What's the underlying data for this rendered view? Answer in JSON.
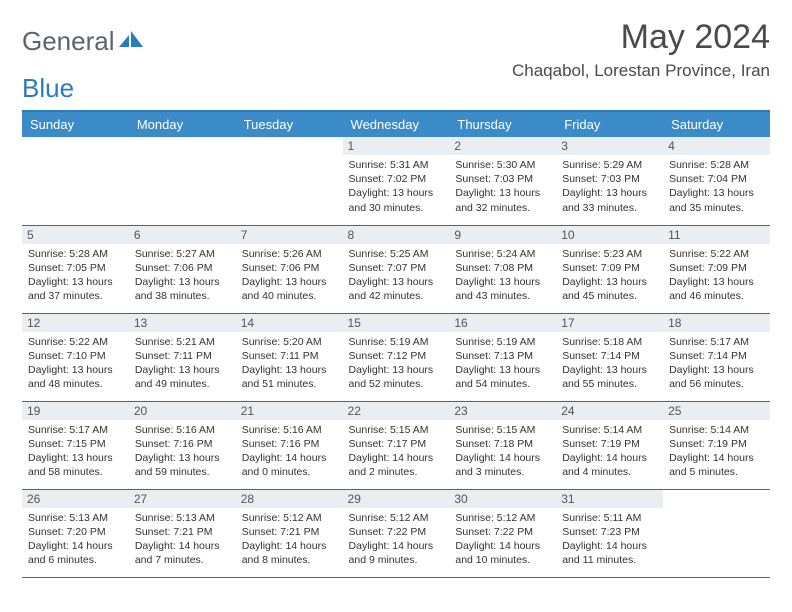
{
  "logo": {
    "part1": "General",
    "part2": "Blue"
  },
  "title": "May 2024",
  "location": "Chaqabol, Lorestan Province, Iran",
  "colors": {
    "header_bg": "#3b8bc9",
    "header_text": "#ffffff",
    "rule": "#2b7bbf",
    "day_bg": "#e9eef2",
    "row_border": "#2b6da8",
    "logo_gray": "#5a6570",
    "logo_blue": "#2b7bbf"
  },
  "weekdays": [
    "Sunday",
    "Monday",
    "Tuesday",
    "Wednesday",
    "Thursday",
    "Friday",
    "Saturday"
  ],
  "weeks": [
    [
      {
        "n": "",
        "sunrise": "",
        "sunset": "",
        "daylight": ""
      },
      {
        "n": "",
        "sunrise": "",
        "sunset": "",
        "daylight": ""
      },
      {
        "n": "",
        "sunrise": "",
        "sunset": "",
        "daylight": ""
      },
      {
        "n": "1",
        "sunrise": "Sunrise: 5:31 AM",
        "sunset": "Sunset: 7:02 PM",
        "daylight": "Daylight: 13 hours and 30 minutes."
      },
      {
        "n": "2",
        "sunrise": "Sunrise: 5:30 AM",
        "sunset": "Sunset: 7:03 PM",
        "daylight": "Daylight: 13 hours and 32 minutes."
      },
      {
        "n": "3",
        "sunrise": "Sunrise: 5:29 AM",
        "sunset": "Sunset: 7:03 PM",
        "daylight": "Daylight: 13 hours and 33 minutes."
      },
      {
        "n": "4",
        "sunrise": "Sunrise: 5:28 AM",
        "sunset": "Sunset: 7:04 PM",
        "daylight": "Daylight: 13 hours and 35 minutes."
      }
    ],
    [
      {
        "n": "5",
        "sunrise": "Sunrise: 5:28 AM",
        "sunset": "Sunset: 7:05 PM",
        "daylight": "Daylight: 13 hours and 37 minutes."
      },
      {
        "n": "6",
        "sunrise": "Sunrise: 5:27 AM",
        "sunset": "Sunset: 7:06 PM",
        "daylight": "Daylight: 13 hours and 38 minutes."
      },
      {
        "n": "7",
        "sunrise": "Sunrise: 5:26 AM",
        "sunset": "Sunset: 7:06 PM",
        "daylight": "Daylight: 13 hours and 40 minutes."
      },
      {
        "n": "8",
        "sunrise": "Sunrise: 5:25 AM",
        "sunset": "Sunset: 7:07 PM",
        "daylight": "Daylight: 13 hours and 42 minutes."
      },
      {
        "n": "9",
        "sunrise": "Sunrise: 5:24 AM",
        "sunset": "Sunset: 7:08 PM",
        "daylight": "Daylight: 13 hours and 43 minutes."
      },
      {
        "n": "10",
        "sunrise": "Sunrise: 5:23 AM",
        "sunset": "Sunset: 7:09 PM",
        "daylight": "Daylight: 13 hours and 45 minutes."
      },
      {
        "n": "11",
        "sunrise": "Sunrise: 5:22 AM",
        "sunset": "Sunset: 7:09 PM",
        "daylight": "Daylight: 13 hours and 46 minutes."
      }
    ],
    [
      {
        "n": "12",
        "sunrise": "Sunrise: 5:22 AM",
        "sunset": "Sunset: 7:10 PM",
        "daylight": "Daylight: 13 hours and 48 minutes."
      },
      {
        "n": "13",
        "sunrise": "Sunrise: 5:21 AM",
        "sunset": "Sunset: 7:11 PM",
        "daylight": "Daylight: 13 hours and 49 minutes."
      },
      {
        "n": "14",
        "sunrise": "Sunrise: 5:20 AM",
        "sunset": "Sunset: 7:11 PM",
        "daylight": "Daylight: 13 hours and 51 minutes."
      },
      {
        "n": "15",
        "sunrise": "Sunrise: 5:19 AM",
        "sunset": "Sunset: 7:12 PM",
        "daylight": "Daylight: 13 hours and 52 minutes."
      },
      {
        "n": "16",
        "sunrise": "Sunrise: 5:19 AM",
        "sunset": "Sunset: 7:13 PM",
        "daylight": "Daylight: 13 hours and 54 minutes."
      },
      {
        "n": "17",
        "sunrise": "Sunrise: 5:18 AM",
        "sunset": "Sunset: 7:14 PM",
        "daylight": "Daylight: 13 hours and 55 minutes."
      },
      {
        "n": "18",
        "sunrise": "Sunrise: 5:17 AM",
        "sunset": "Sunset: 7:14 PM",
        "daylight": "Daylight: 13 hours and 56 minutes."
      }
    ],
    [
      {
        "n": "19",
        "sunrise": "Sunrise: 5:17 AM",
        "sunset": "Sunset: 7:15 PM",
        "daylight": "Daylight: 13 hours and 58 minutes."
      },
      {
        "n": "20",
        "sunrise": "Sunrise: 5:16 AM",
        "sunset": "Sunset: 7:16 PM",
        "daylight": "Daylight: 13 hours and 59 minutes."
      },
      {
        "n": "21",
        "sunrise": "Sunrise: 5:16 AM",
        "sunset": "Sunset: 7:16 PM",
        "daylight": "Daylight: 14 hours and 0 minutes."
      },
      {
        "n": "22",
        "sunrise": "Sunrise: 5:15 AM",
        "sunset": "Sunset: 7:17 PM",
        "daylight": "Daylight: 14 hours and 2 minutes."
      },
      {
        "n": "23",
        "sunrise": "Sunrise: 5:15 AM",
        "sunset": "Sunset: 7:18 PM",
        "daylight": "Daylight: 14 hours and 3 minutes."
      },
      {
        "n": "24",
        "sunrise": "Sunrise: 5:14 AM",
        "sunset": "Sunset: 7:19 PM",
        "daylight": "Daylight: 14 hours and 4 minutes."
      },
      {
        "n": "25",
        "sunrise": "Sunrise: 5:14 AM",
        "sunset": "Sunset: 7:19 PM",
        "daylight": "Daylight: 14 hours and 5 minutes."
      }
    ],
    [
      {
        "n": "26",
        "sunrise": "Sunrise: 5:13 AM",
        "sunset": "Sunset: 7:20 PM",
        "daylight": "Daylight: 14 hours and 6 minutes."
      },
      {
        "n": "27",
        "sunrise": "Sunrise: 5:13 AM",
        "sunset": "Sunset: 7:21 PM",
        "daylight": "Daylight: 14 hours and 7 minutes."
      },
      {
        "n": "28",
        "sunrise": "Sunrise: 5:12 AM",
        "sunset": "Sunset: 7:21 PM",
        "daylight": "Daylight: 14 hours and 8 minutes."
      },
      {
        "n": "29",
        "sunrise": "Sunrise: 5:12 AM",
        "sunset": "Sunset: 7:22 PM",
        "daylight": "Daylight: 14 hours and 9 minutes."
      },
      {
        "n": "30",
        "sunrise": "Sunrise: 5:12 AM",
        "sunset": "Sunset: 7:22 PM",
        "daylight": "Daylight: 14 hours and 10 minutes."
      },
      {
        "n": "31",
        "sunrise": "Sunrise: 5:11 AM",
        "sunset": "Sunset: 7:23 PM",
        "daylight": "Daylight: 14 hours and 11 minutes."
      },
      {
        "n": "",
        "sunrise": "",
        "sunset": "",
        "daylight": ""
      }
    ]
  ]
}
